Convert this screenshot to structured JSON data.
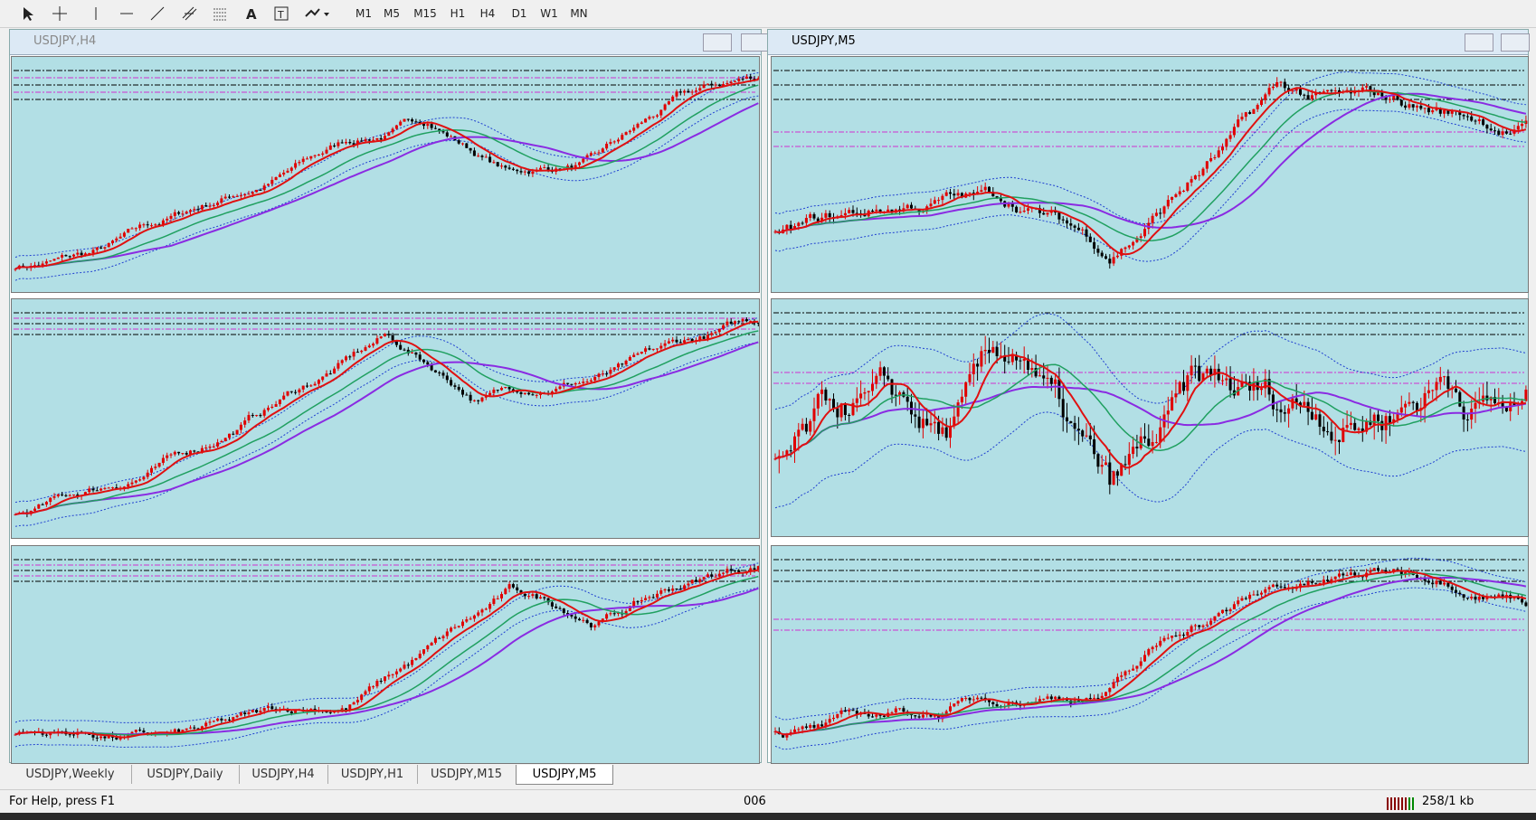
{
  "toolbar": {
    "timeframes": [
      "M1",
      "M5",
      "M15",
      "H1",
      "H4",
      "D1",
      "W1",
      "MN"
    ]
  },
  "windows": [
    {
      "title": "USDJPY,H4"
    },
    {
      "title": "USDJPY,M5"
    }
  ],
  "tabs": [
    "USDJPY,Weekly",
    "USDJPY,Daily",
    "USDJPY,H4",
    "USDJPY,H1",
    "USDJPY,M15",
    "USDJPY,M5"
  ],
  "status": {
    "help": "For Help, press F1",
    "profile": "006",
    "traffic": "258/1 kb"
  }
}
